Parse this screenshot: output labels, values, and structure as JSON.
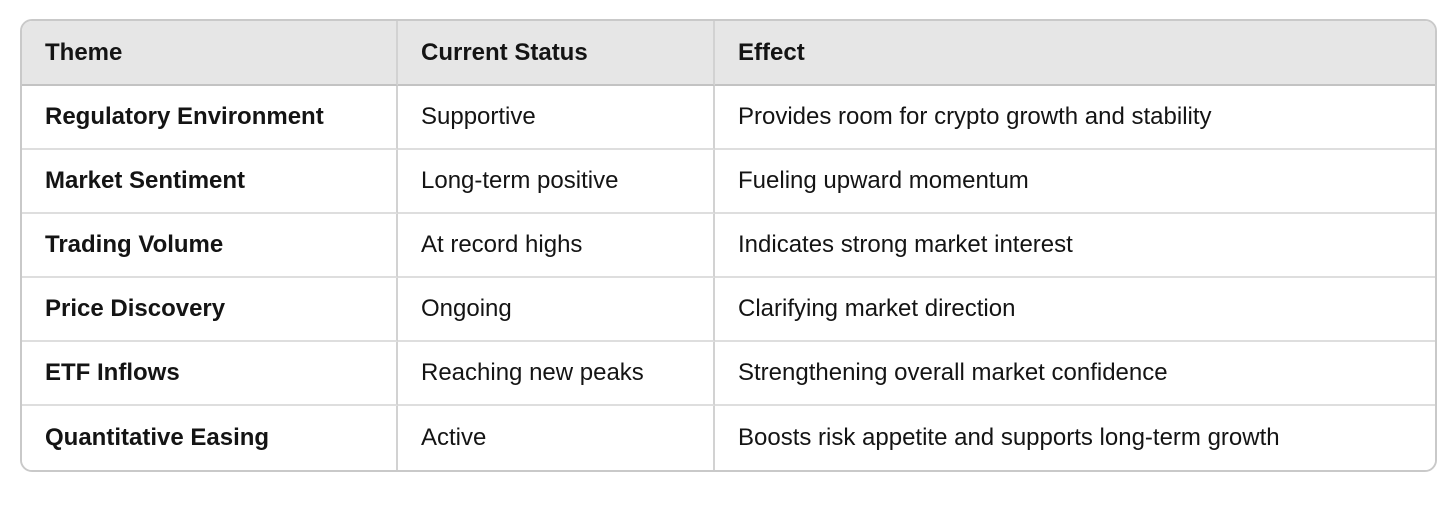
{
  "table": {
    "columns": [
      {
        "label": "Theme"
      },
      {
        "label": "Current Status"
      },
      {
        "label": "Effect"
      }
    ],
    "rows": [
      {
        "theme": "Regulatory Environment",
        "status": "Supportive",
        "effect": "Provides room for crypto growth and stability"
      },
      {
        "theme": "Market Sentiment",
        "status": "Long-term positive",
        "effect": "Fueling upward momentum"
      },
      {
        "theme": "Trading Volume",
        "status": "At record highs",
        "effect": "Indicates strong market interest"
      },
      {
        "theme": "Price Discovery",
        "status": "Ongoing",
        "effect": "Clarifying market direction"
      },
      {
        "theme": "ETF Inflows",
        "status": "Reaching new peaks",
        "effect": "Strengthening overall market confidence"
      },
      {
        "theme": "Quantitative Easing",
        "status": "Active",
        "effect": "Boosts risk appetite and supports long-term growth"
      }
    ],
    "colors": {
      "header_bg": "#e6e6e6",
      "outer_border": "#c9c9c9",
      "header_divider": "#c3c3c3",
      "row_divider": "#dedede",
      "column_divider": "#d2d2d2",
      "text": "#141414",
      "page_bg": "#ffffff"
    }
  }
}
